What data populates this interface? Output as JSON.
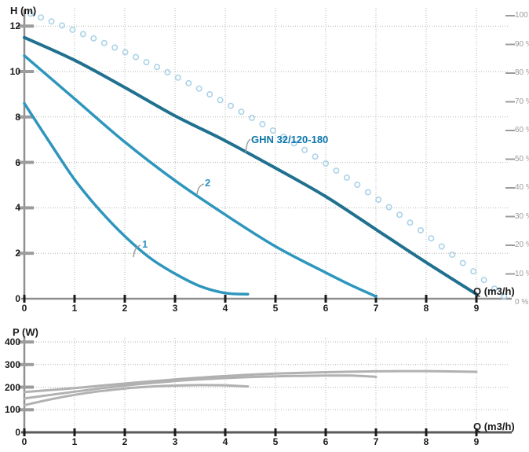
{
  "chart_data": [
    {
      "id": "head-chart",
      "type": "line",
      "ylabel": "H (m)",
      "xlabel": "Q (m3/h)",
      "xlim": [
        0,
        9.65
      ],
      "ylim": [
        0,
        12.8
      ],
      "grid": true,
      "x_ticks": [
        0,
        1,
        2,
        3,
        4,
        5,
        6,
        7,
        8,
        9
      ],
      "y_ticks": [
        0,
        2,
        4,
        6,
        8,
        10,
        12
      ],
      "right_axis_ticks": [
        {
          "v": 100,
          "label": "100"
        },
        {
          "v": 90,
          "label": "90 %"
        },
        {
          "v": 80,
          "label": "80 %"
        },
        {
          "v": 70,
          "label": "70 %"
        },
        {
          "v": 60,
          "label": "60 %"
        },
        {
          "v": 50,
          "label": "50 %"
        },
        {
          "v": 40,
          "label": "40 %"
        },
        {
          "v": 30,
          "label": "30 %"
        },
        {
          "v": 20,
          "label": "20 %"
        },
        {
          "v": 10,
          "label": "10 %"
        },
        {
          "v": 0,
          "label": "0 %"
        }
      ],
      "series": [
        {
          "id": "speed1",
          "label": "1",
          "color": "#2e96bd",
          "width": 3.5,
          "points": [
            [
              0,
              8.6
            ],
            [
              0.5,
              6.9
            ],
            [
              1,
              5.25
            ],
            [
              1.5,
              3.9
            ],
            [
              2,
              2.75
            ],
            [
              2.5,
              1.8
            ],
            [
              3,
              1.1
            ],
            [
              3.5,
              0.55
            ],
            [
              4,
              0.25
            ],
            [
              4.45,
              0.2
            ]
          ]
        },
        {
          "id": "speed2",
          "label": "2",
          "color": "#2e96bd",
          "width": 3.5,
          "points": [
            [
              0,
              10.7
            ],
            [
              1,
              8.8
            ],
            [
              2,
              6.9
            ],
            [
              3,
              5.2
            ],
            [
              4,
              3.7
            ],
            [
              5,
              2.3
            ],
            [
              6,
              1.15
            ],
            [
              6.5,
              0.6
            ],
            [
              7,
              0.1
            ]
          ]
        },
        {
          "id": "ghn",
          "label": "GHN 32/120-180",
          "color": "#20708f",
          "width": 4,
          "points": [
            [
              0,
              11.5
            ],
            [
              1,
              10.5
            ],
            [
              2,
              9.3
            ],
            [
              3,
              8.05
            ],
            [
              4,
              6.95
            ],
            [
              5,
              5.75
            ],
            [
              6,
              4.5
            ],
            [
              7,
              3.05
            ],
            [
              8,
              1.6
            ],
            [
              9,
              0.2
            ]
          ]
        }
      ],
      "efficiency_markers": {
        "color": "#abd3e8",
        "unit": "%",
        "points": [
          [
            0.12,
            100.7
          ],
          [
            0.33,
            99.4
          ],
          [
            0.54,
            98.0
          ],
          [
            0.75,
            96.6
          ],
          [
            0.96,
            95.1
          ],
          [
            1.17,
            93.6
          ],
          [
            1.38,
            92.1
          ],
          [
            1.59,
            90.5
          ],
          [
            1.8,
            88.9
          ],
          [
            2.01,
            87.3
          ],
          [
            2.22,
            85.6
          ],
          [
            2.43,
            83.8
          ],
          [
            2.64,
            82.1
          ],
          [
            2.85,
            80.3
          ],
          [
            3.06,
            78.4
          ],
          [
            3.27,
            76.5
          ],
          [
            3.48,
            74.6
          ],
          [
            3.69,
            72.6
          ],
          [
            3.9,
            70.6
          ],
          [
            4.11,
            68.6
          ],
          [
            4.32,
            66.5
          ],
          [
            4.53,
            64.4
          ],
          [
            4.74,
            62.2
          ],
          [
            4.95,
            60.0
          ],
          [
            5.16,
            57.8
          ],
          [
            5.37,
            55.5
          ],
          [
            5.58,
            53.2
          ],
          [
            5.79,
            50.9
          ],
          [
            6.0,
            48.5
          ],
          [
            6.21,
            46.0
          ],
          [
            6.42,
            43.6
          ],
          [
            6.63,
            41.1
          ],
          [
            6.84,
            38.5
          ],
          [
            7.05,
            35.9
          ],
          [
            7.26,
            33.3
          ],
          [
            7.47,
            30.6
          ],
          [
            7.68,
            27.9
          ],
          [
            7.89,
            25.2
          ],
          [
            8.1,
            22.4
          ],
          [
            8.31,
            19.6
          ],
          [
            8.52,
            16.7
          ],
          [
            8.73,
            13.8
          ],
          [
            8.94,
            10.9
          ],
          [
            9.15,
            7.9
          ],
          [
            9.36,
            4.9
          ],
          [
            9.55,
            2.2
          ]
        ]
      }
    },
    {
      "id": "power-chart",
      "type": "line",
      "ylabel": "P (W)",
      "xlabel": "Q (m3/h)",
      "xlim": [
        0,
        9.65
      ],
      "ylim": [
        0,
        400
      ],
      "grid": true,
      "x_ticks": [
        0,
        1,
        2,
        3,
        4,
        5,
        6,
        7,
        8,
        9
      ],
      "y_ticks": [
        0,
        100,
        200,
        300,
        400
      ],
      "series": [
        {
          "id": "p-speed1",
          "color": "#b1b1b1",
          "width": 3,
          "points": [
            [
              0,
              120
            ],
            [
              0.5,
              145
            ],
            [
              1,
              166
            ],
            [
              1.5,
              182
            ],
            [
              2,
              194
            ],
            [
              2.5,
              202
            ],
            [
              3,
              207
            ],
            [
              3.5,
              209
            ],
            [
              4,
              208
            ],
            [
              4.45,
              203
            ]
          ]
        },
        {
          "id": "p-speed2",
          "color": "#b1b1b1",
          "width": 3,
          "points": [
            [
              0,
              150
            ],
            [
              1,
              180
            ],
            [
              2,
              207
            ],
            [
              3,
              227
            ],
            [
              4,
              240
            ],
            [
              5,
              248
            ],
            [
              6,
              251
            ],
            [
              6.5,
              251
            ],
            [
              7,
              246
            ]
          ]
        },
        {
          "id": "p-ghn",
          "color": "#b1b1b1",
          "width": 3,
          "points": [
            [
              0,
              178
            ],
            [
              1,
              196
            ],
            [
              2,
              216
            ],
            [
              3,
              234
            ],
            [
              4,
              249
            ],
            [
              5,
              260
            ],
            [
              6,
              266
            ],
            [
              7,
              270
            ],
            [
              8,
              271
            ],
            [
              9,
              268
            ]
          ]
        }
      ]
    }
  ]
}
